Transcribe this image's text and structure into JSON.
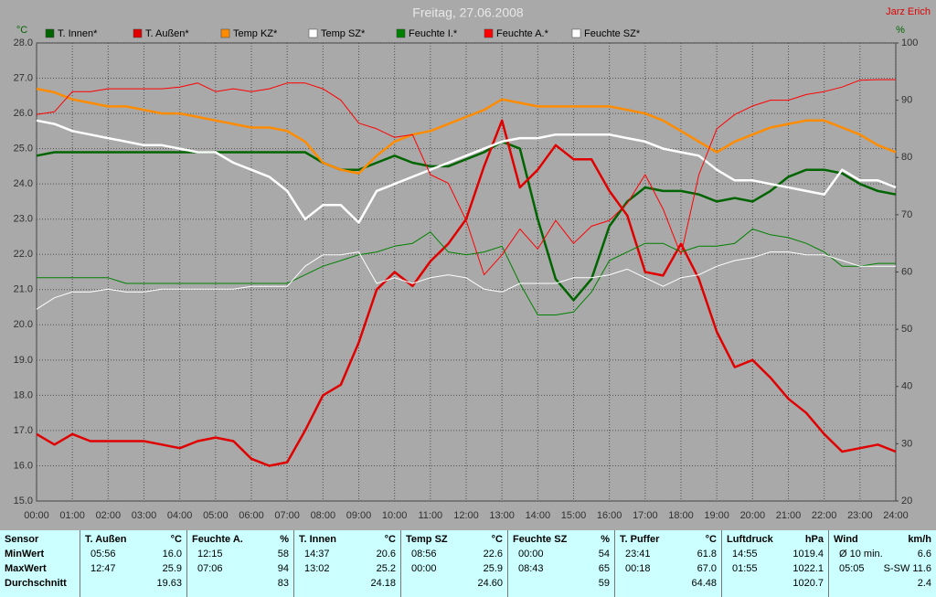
{
  "chart_data": {
    "type": "line",
    "title": "Freitag, 27.06.2008",
    "author": "Jarz Erich",
    "y_unit": "°C",
    "y2_unit": "%",
    "x": [
      0,
      0.5,
      1,
      1.5,
      2,
      2.5,
      3,
      3.5,
      4,
      4.5,
      5,
      5.5,
      6,
      6.5,
      7,
      7.5,
      8,
      8.5,
      9,
      9.5,
      10,
      10.5,
      11,
      11.5,
      12,
      12.5,
      13,
      13.5,
      14,
      14.5,
      15,
      15.5,
      16,
      16.5,
      17,
      17.5,
      18,
      18.5,
      19,
      19.5,
      20,
      20.5,
      21,
      21.5,
      22,
      22.5,
      23,
      23.5,
      24
    ],
    "xlim": [
      0,
      24
    ],
    "xticks": [
      {
        "value": 0,
        "label": "00:00"
      },
      {
        "value": 1,
        "label": "01:00"
      },
      {
        "value": 2,
        "label": "02:00"
      },
      {
        "value": 3,
        "label": "03:00"
      },
      {
        "value": 4,
        "label": "04:00"
      },
      {
        "value": 5,
        "label": "05:00"
      },
      {
        "value": 6,
        "label": "06:00"
      },
      {
        "value": 7,
        "label": "07:00"
      },
      {
        "value": 8,
        "label": "08:00"
      },
      {
        "value": 9,
        "label": "09:00"
      },
      {
        "value": 10,
        "label": "10:00"
      },
      {
        "value": 11,
        "label": "11:00"
      },
      {
        "value": 12,
        "label": "12:00"
      },
      {
        "value": 13,
        "label": "13:00"
      },
      {
        "value": 14,
        "label": "14:00"
      },
      {
        "value": 15,
        "label": "15:00"
      },
      {
        "value": 16,
        "label": "16:00"
      },
      {
        "value": 17,
        "label": "17:00"
      },
      {
        "value": 18,
        "label": "18:00"
      },
      {
        "value": 19,
        "label": "19:00"
      },
      {
        "value": 20,
        "label": "20:00"
      },
      {
        "value": 21,
        "label": "21:00"
      },
      {
        "value": 22,
        "label": "22:00"
      },
      {
        "value": 23,
        "label": "23:00"
      },
      {
        "value": 24,
        "label": "24:00"
      }
    ],
    "ylim": [
      15,
      28
    ],
    "yticks": [
      {
        "value": 15,
        "label": "15.0"
      },
      {
        "value": 16,
        "label": "16.0"
      },
      {
        "value": 17,
        "label": "17.0"
      },
      {
        "value": 18,
        "label": "18.0"
      },
      {
        "value": 19,
        "label": "19.0"
      },
      {
        "value": 20,
        "label": "20.0"
      },
      {
        "value": 21,
        "label": "21.0"
      },
      {
        "value": 22,
        "label": "22.0"
      },
      {
        "value": 23,
        "label": "23.0"
      },
      {
        "value": 24,
        "label": "24.0"
      },
      {
        "value": 25,
        "label": "25.0"
      },
      {
        "value": 26,
        "label": "26.0"
      },
      {
        "value": 27,
        "label": "27.0"
      },
      {
        "value": 28,
        "label": "28.0"
      }
    ],
    "y2lim": [
      20,
      100
    ],
    "y2ticks": [
      20,
      30,
      40,
      50,
      60,
      70,
      80,
      90,
      100
    ],
    "grid": true,
    "series": [
      {
        "name": "T. Innen*",
        "color": "#006400",
        "line_width": 2.5,
        "values": [
          24.8,
          24.9,
          24.9,
          24.9,
          24.9,
          24.9,
          24.9,
          24.9,
          24.9,
          24.9,
          24.9,
          24.9,
          24.9,
          24.9,
          24.9,
          24.9,
          24.6,
          24.4,
          24.4,
          24.6,
          24.8,
          24.6,
          24.5,
          24.5,
          24.7,
          24.9,
          25.2,
          25.0,
          23.0,
          21.3,
          20.7,
          21.3,
          22.8,
          23.5,
          23.9,
          23.8,
          23.8,
          23.7,
          23.5,
          23.6,
          23.5,
          23.8,
          24.2,
          24.4,
          24.4,
          24.3,
          24.0,
          23.8,
          23.7
        ]
      },
      {
        "name": "T. Außen*",
        "color": "#e00000",
        "line_width": 2.5,
        "values": [
          16.9,
          16.6,
          16.9,
          16.7,
          16.7,
          16.7,
          16.7,
          16.6,
          16.5,
          16.7,
          16.8,
          16.7,
          16.2,
          16.0,
          16.1,
          17.0,
          18.0,
          18.3,
          19.5,
          21.0,
          21.5,
          21.1,
          21.8,
          22.3,
          23.0,
          24.5,
          25.8,
          23.9,
          24.4,
          25.1,
          24.7,
          24.7,
          23.8,
          23.1,
          21.5,
          21.4,
          22.3,
          21.3,
          19.8,
          18.8,
          19.0,
          18.5,
          17.9,
          17.5,
          16.9,
          16.4,
          16.5,
          16.6,
          16.4
        ]
      },
      {
        "name": "Temp KZ*",
        "color": "#ff8c00",
        "line_width": 2.5,
        "values": [
          26.7,
          26.6,
          26.4,
          26.3,
          26.2,
          26.2,
          26.1,
          26.0,
          26.0,
          25.9,
          25.8,
          25.7,
          25.6,
          25.6,
          25.5,
          25.2,
          24.6,
          24.4,
          24.3,
          24.8,
          25.2,
          25.4,
          25.5,
          25.7,
          25.9,
          26.1,
          26.4,
          26.3,
          26.2,
          26.2,
          26.2,
          26.2,
          26.2,
          26.1,
          26.0,
          25.8,
          25.5,
          25.2,
          24.9,
          25.2,
          25.4,
          25.6,
          25.7,
          25.8,
          25.8,
          25.6,
          25.4,
          25.1,
          24.9
        ]
      },
      {
        "name": "Temp SZ*",
        "color": "#ffffff",
        "line_width": 2.5,
        "values": [
          25.8,
          25.7,
          25.5,
          25.4,
          25.3,
          25.2,
          25.1,
          25.1,
          25.0,
          24.9,
          24.9,
          24.6,
          24.4,
          24.2,
          23.8,
          23.0,
          23.4,
          23.4,
          22.9,
          23.8,
          24.0,
          24.2,
          24.4,
          24.6,
          24.8,
          25.0,
          25.2,
          25.3,
          25.3,
          25.4,
          25.4,
          25.4,
          25.4,
          25.3,
          25.2,
          25.0,
          24.9,
          24.8,
          24.4,
          24.1,
          24.1,
          24.0,
          23.9,
          23.8,
          23.7,
          24.4,
          24.1,
          24.1,
          23.9
        ]
      },
      {
        "name": "Feuchte I.*",
        "color": "#008000",
        "line_width": 1,
        "axis": "y2",
        "values": [
          59,
          59,
          59,
          59,
          59,
          58,
          58,
          58,
          58,
          58,
          58,
          58,
          58,
          58,
          58,
          59.5,
          61,
          62,
          63,
          63.5,
          64.5,
          65,
          67,
          63.5,
          63,
          63.5,
          64.5,
          58,
          52.5,
          52.5,
          53,
          56.5,
          62,
          63.5,
          65,
          65,
          63.5,
          64.5,
          64.5,
          65,
          67.5,
          66.5,
          66,
          65,
          63.5,
          61,
          61,
          61.5,
          61.5
        ]
      },
      {
        "name": "Feuchte A.*",
        "color": "#ff0000",
        "line_width": 1,
        "axis": "y2",
        "values": [
          87.5,
          88,
          91.5,
          91.5,
          92,
          92,
          92,
          92,
          92.3,
          93,
          91.5,
          92,
          91.5,
          92,
          93,
          93,
          92,
          90,
          86,
          85,
          83.5,
          84,
          77,
          75.5,
          69,
          59.5,
          63,
          67.5,
          64,
          69,
          65,
          68,
          69,
          72,
          77,
          71,
          63,
          77,
          85,
          87.5,
          89,
          90,
          90,
          91,
          91.5,
          92.3,
          93.5,
          93.6,
          93.6
        ]
      },
      {
        "name": "Feuchte SZ*",
        "color": "#ffffff",
        "line_width": 1,
        "axis": "y2",
        "values": [
          53.5,
          55.5,
          56.5,
          56.5,
          57,
          56.5,
          56.5,
          57,
          57,
          57,
          57,
          57,
          57.5,
          57.5,
          57.5,
          61,
          63,
          63,
          63.5,
          58,
          59,
          58,
          59,
          59.5,
          59,
          57,
          56.5,
          58,
          58,
          58,
          59,
          59,
          59.5,
          60.5,
          59,
          57.5,
          59,
          59.5,
          61,
          62,
          62.5,
          63.5,
          63.5,
          63,
          63,
          62,
          61,
          61,
          61
        ]
      }
    ]
  },
  "table": {
    "row_labels": [
      "Sensor",
      "MinWert",
      "MaxWert",
      "Durchschnitt"
    ],
    "sensors": [
      {
        "name": "T. Außen",
        "unit": "°C",
        "min": [
          "05:56",
          "16.0"
        ],
        "max": [
          "12:47",
          "25.9"
        ],
        "avg": "19.63"
      },
      {
        "name": "Feuchte A.",
        "unit": "%",
        "min": [
          "12:15",
          "58"
        ],
        "max": [
          "07:06",
          "94"
        ],
        "avg": "83"
      },
      {
        "name": "T. Innen",
        "unit": "°C",
        "min": [
          "14:37",
          "20.6"
        ],
        "max": [
          "13:02",
          "25.2"
        ],
        "avg": "24.18"
      },
      {
        "name": "Temp SZ",
        "unit": "°C",
        "min": [
          "08:56",
          "22.6"
        ],
        "max": [
          "00:00",
          "25.9"
        ],
        "avg": "24.60"
      },
      {
        "name": "Feuchte SZ",
        "unit": "%",
        "min": [
          "00:00",
          "54"
        ],
        "max": [
          "08:43",
          "65"
        ],
        "avg": "59"
      },
      {
        "name": "T. Puffer",
        "unit": "°C",
        "min": [
          "23:41",
          "61.8"
        ],
        "max": [
          "00:18",
          "67.0"
        ],
        "avg": "64.48"
      },
      {
        "name": "Luftdruck",
        "unit": "hPa",
        "min": [
          "14:55",
          "1019.4"
        ],
        "max": [
          "01:55",
          "1022.1"
        ],
        "avg": "1020.7"
      },
      {
        "name": "Wind",
        "unit": "km/h",
        "min": [
          "Ø 10 min.",
          "6.6"
        ],
        "max": [
          "05:05",
          "S-SW 11.6"
        ],
        "avg": "2.4"
      }
    ]
  }
}
